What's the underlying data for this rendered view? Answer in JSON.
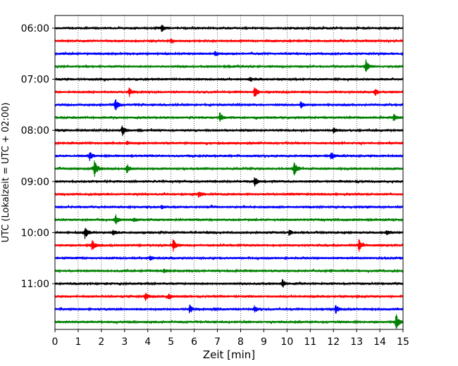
{
  "chart_data": {
    "type": "line",
    "chart_kind": "seismic helicorder (dayplot)",
    "xlabel": "Zeit  [min]",
    "ylabel": "UTC (Lokalzeit = UTC + 02:00)",
    "xlim": [
      0,
      15
    ],
    "x_ticks": [
      0,
      1,
      2,
      3,
      4,
      5,
      6,
      7,
      8,
      9,
      10,
      11,
      12,
      13,
      14,
      15
    ],
    "x_tick_labels": [
      "0",
      "1",
      "2",
      "3",
      "4",
      "5",
      "6",
      "7",
      "8",
      "9",
      "10",
      "11",
      "12",
      "13",
      "14",
      "15"
    ],
    "grid": "vertical dotted lines at each minute",
    "y_tick_labels": [
      "06:00",
      "07:00",
      "08:00",
      "09:00",
      "10:00",
      "11:00"
    ],
    "trace_interval_minutes": 15,
    "color_cycle": [
      "#000000",
      "#ff0000",
      "#0000ff",
      "#008000"
    ],
    "traces": [
      {
        "start": "06:00",
        "events": [
          [
            4.6,
            0.6
          ]
        ]
      },
      {
        "start": "06:15",
        "events": [
          [
            5.0,
            0.35
          ]
        ]
      },
      {
        "start": "06:30",
        "events": [
          [
            6.9,
            0.4
          ]
        ]
      },
      {
        "start": "06:45",
        "events": [
          [
            13.4,
            1.3
          ]
        ]
      },
      {
        "start": "07:00",
        "events": [
          [
            8.4,
            0.3
          ]
        ]
      },
      {
        "start": "07:15",
        "events": [
          [
            3.2,
            0.8
          ],
          [
            8.6,
            1.4
          ],
          [
            13.8,
            0.7
          ]
        ]
      },
      {
        "start": "07:30",
        "events": [
          [
            2.6,
            1.2
          ],
          [
            10.6,
            0.8
          ]
        ]
      },
      {
        "start": "07:45",
        "events": [
          [
            7.1,
            1.0
          ],
          [
            14.6,
            0.6
          ]
        ]
      },
      {
        "start": "08:00",
        "events": [
          [
            2.9,
            1.0
          ],
          [
            12.0,
            0.5
          ]
        ]
      },
      {
        "start": "08:15",
        "events": [
          [
            3.1,
            0.3
          ]
        ]
      },
      {
        "start": "08:30",
        "events": [
          [
            1.5,
            0.8
          ],
          [
            11.9,
            0.8
          ]
        ]
      },
      {
        "start": "08:45",
        "events": [
          [
            1.7,
            1.7
          ],
          [
            3.1,
            0.8
          ],
          [
            10.3,
            1.6
          ]
        ]
      },
      {
        "start": "09:00",
        "events": [
          [
            8.6,
            1.0
          ]
        ]
      },
      {
        "start": "09:15",
        "events": [
          [
            6.2,
            0.6
          ]
        ]
      },
      {
        "start": "09:30",
        "events": [
          [
            4.6,
            0.4
          ]
        ]
      },
      {
        "start": "09:45",
        "events": [
          [
            2.6,
            1.1
          ],
          [
            3.4,
            0.4
          ]
        ]
      },
      {
        "start": "10:00",
        "events": [
          [
            1.3,
            1.2
          ],
          [
            2.5,
            0.4
          ],
          [
            10.1,
            0.5
          ],
          [
            14.3,
            0.4
          ]
        ]
      },
      {
        "start": "10:15",
        "events": [
          [
            1.6,
            0.9
          ],
          [
            5.1,
            1.3
          ],
          [
            13.1,
            1.1
          ]
        ]
      },
      {
        "start": "10:30",
        "events": [
          [
            4.1,
            0.4
          ]
        ]
      },
      {
        "start": "10:45",
        "events": [
          [
            4.7,
            0.4
          ]
        ]
      },
      {
        "start": "11:00",
        "events": [
          [
            9.8,
            0.9
          ]
        ]
      },
      {
        "start": "11:15",
        "events": [
          [
            3.9,
            0.8
          ],
          [
            4.9,
            0.5
          ]
        ]
      },
      {
        "start": "11:30",
        "events": [
          [
            5.8,
            0.8
          ],
          [
            8.6,
            0.6
          ],
          [
            12.1,
            0.8
          ]
        ]
      },
      {
        "start": "11:45",
        "events": [
          [
            14.7,
            1.5
          ]
        ]
      }
    ]
  }
}
